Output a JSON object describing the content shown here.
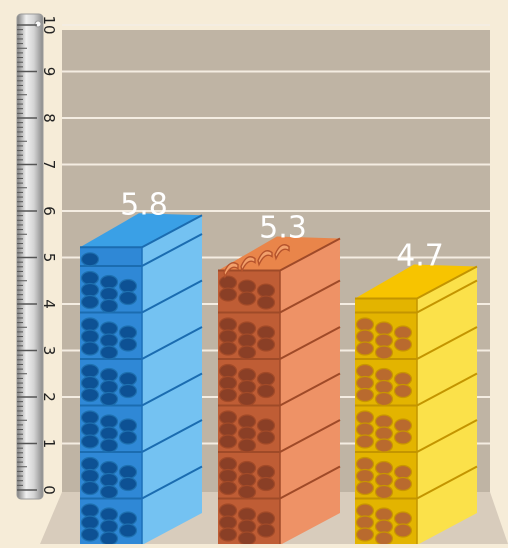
{
  "colors": {
    "background": "#f6ecd8",
    "plot_area": "#bfb4a4",
    "floor": "#d8ccbc",
    "gridline": "#f4ede2",
    "blue": "#3aa0e6",
    "orange": "#e9854a",
    "yellow": "#f7c400"
  },
  "ruler": {
    "tick_labels": [
      "0",
      "1",
      "2",
      "3",
      "4",
      "5",
      "6",
      "7",
      "8",
      "9",
      "10"
    ]
  },
  "chart_data": {
    "type": "bar",
    "categories": [
      "",
      "",
      ""
    ],
    "values": [
      5.8,
      5.3,
      4.7
    ],
    "data_labels": [
      "5.8",
      "5.3",
      "4.7"
    ],
    "title": "",
    "xlabel": "",
    "ylabel": "",
    "ylim": [
      0,
      10
    ],
    "grid": true,
    "legend": "none"
  }
}
